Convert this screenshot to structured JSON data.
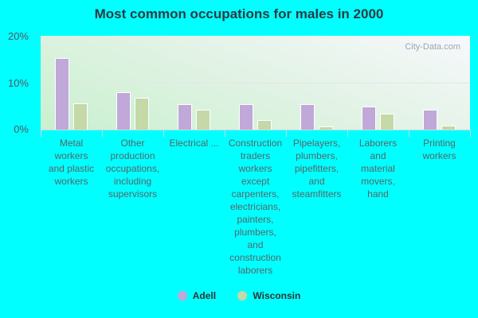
{
  "chart_data": {
    "type": "bar",
    "title": "Most common occupations for males in 2000",
    "xlabel": "",
    "ylabel": "",
    "ylim": [
      0,
      20
    ],
    "yticks": [
      "0%",
      "10%",
      "20%"
    ],
    "grid": true,
    "legend_position": "bottom",
    "categories": [
      "Metal workers and plastic workers",
      "Other production occupations, including supervisors",
      "Electrical ...",
      "Construction traders workers except carpenters, electricians, painters, plumbers, and construction laborers",
      "Pipelayers, plumbers, pipefitters, and steamfitters",
      "Laborers and material movers, hand",
      "Printing workers"
    ],
    "series": [
      {
        "name": "Adell",
        "color": "#c0a8d8",
        "values": [
          15.2,
          7.9,
          5.5,
          5.5,
          5.5,
          4.9,
          4.3
        ]
      },
      {
        "name": "Wisconsin",
        "color": "#c4d8a8",
        "values": [
          5.6,
          6.8,
          4.3,
          2.0,
          0.7,
          3.4,
          0.9
        ]
      }
    ],
    "watermark": "City-Data.com"
  },
  "labels": {
    "title": "Most common occupations for males in 2000",
    "y": [
      "20%",
      "10%",
      "0%"
    ],
    "x": [
      "Metal\nworkers\nand plastic\nworkers",
      "Other\nproduction\noccupations,\nincluding\nsupervisors",
      "Electrical ...",
      "Construction\ntraders\nworkers\nexcept\ncarpenters,\nelectricians,\npainters,\nplumbers,\nand\nconstruction\nlaborers",
      "Pipelayers,\nplumbers,\npipefitters,\nand\nsteamfitters",
      "Laborers\nand\nmaterial\nmovers,\nhand",
      "Printing\nworkers"
    ],
    "legend": [
      "Adell",
      "Wisconsin"
    ],
    "watermark": "City-Data.com"
  }
}
